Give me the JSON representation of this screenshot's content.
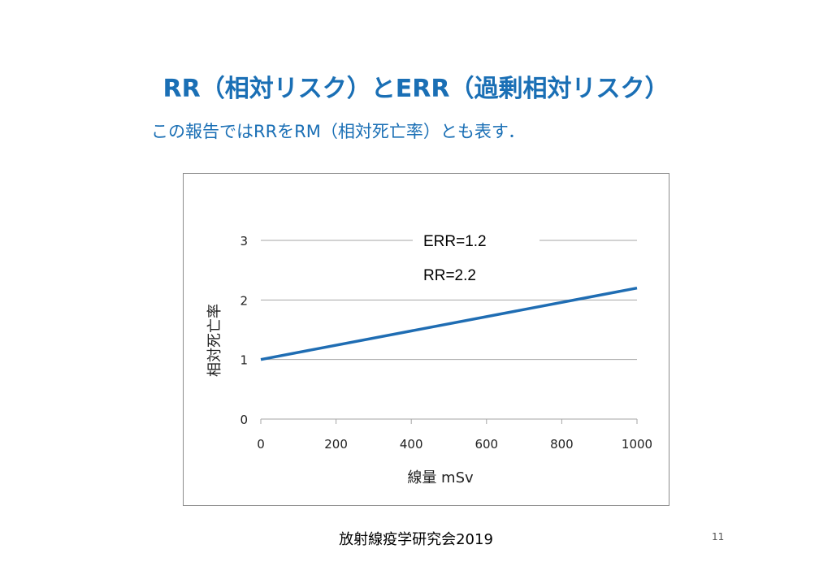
{
  "slide": {
    "title": "RR（相対リスク）とERR（過剰相対リスク）",
    "subtitle": "この報告ではRRをRM（相対死亡率）とも表す．",
    "footer": "放射線疫学研究会2019",
    "page_number": "11"
  },
  "chart_data": {
    "type": "line",
    "title": "",
    "xlabel": "線量 mSv",
    "ylabel": "相対死亡率",
    "xlim": [
      0,
      1000
    ],
    "ylim": [
      0,
      3
    ],
    "x_ticks": [
      0,
      200,
      400,
      600,
      800,
      1000
    ],
    "y_ticks": [
      0,
      1,
      2,
      3
    ],
    "grid": "horizontal",
    "line_color": "#1f6db3",
    "series": [
      {
        "x": [
          0,
          1000
        ],
        "y": [
          1,
          2.2
        ]
      }
    ],
    "annotations": [
      "ERR=1.2",
      "RR=2.2"
    ]
  }
}
